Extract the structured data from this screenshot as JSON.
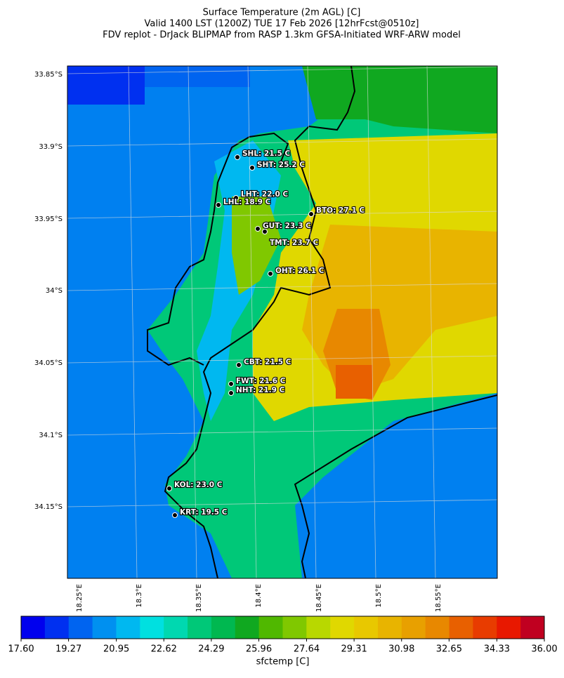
{
  "title": [
    "Surface Temperature (2m AGL) [C]",
    "Valid 1400 LST (1200Z) TUE 17 Feb 2026 [12hrFcst@0510z]",
    "FDV replot - DrJack BLIPMAP from RASP 1.3km GFSA-Initiated WRF-ARW model"
  ],
  "map": {
    "lat_labels": [
      "33.85°S",
      "33.9°S",
      "33.95°S",
      "34°S",
      "34.05°S",
      "34.1°S",
      "34.15°S"
    ],
    "lon_labels": [
      "18.25°E",
      "18.3°E",
      "18.35°E",
      "18.4°E",
      "18.45°E",
      "18.5°E",
      "18.55°E"
    ],
    "stations": [
      "SHL: 21.5 C",
      "SHT: 25.2 C",
      "LHT: 22.0 C",
      "LHL: 18.9 C",
      "BTO: 27.1 C",
      "GUT: 23.3 C",
      "TMT: 23.7 C",
      "OHT: 26.1 C",
      "CBT: 21.5 C",
      "FWT: 21.6 C",
      "NHT: 21.9 C",
      "KOL: 23.0 C",
      "KRT: 19.5 C"
    ]
  },
  "colorbar": {
    "label": "sfctemp [C]",
    "lim": [
      17.6,
      36
    ],
    "colors": [
      "#0000ee",
      "#0030f0",
      "#0064f0",
      "#0090f0",
      "#00b8f0",
      "#00e0e0",
      "#00d8b0",
      "#00c878",
      "#00b850",
      "#10a820",
      "#50b800",
      "#80c800",
      "#b8d800",
      "#e0d800",
      "#e8c800",
      "#e8b400",
      "#e8a000",
      "#e88800",
      "#e86000",
      "#e83c00",
      "#e81800",
      "#c00020"
    ],
    "ticks": [
      {
        "value": 17.6,
        "label": "17.60"
      },
      {
        "value": 19.27,
        "label": "19.27"
      },
      {
        "value": 20.95,
        "label": "20.95"
      },
      {
        "value": 22.62,
        "label": "22.62"
      },
      {
        "value": 24.29,
        "label": "24.29"
      },
      {
        "value": 25.96,
        "label": "25.96"
      },
      {
        "value": 27.64,
        "label": "27.64"
      },
      {
        "value": 29.31,
        "label": "29.31"
      },
      {
        "value": 30.98,
        "label": "30.98"
      },
      {
        "value": 32.65,
        "label": "32.65"
      },
      {
        "value": 34.33,
        "label": "34.33"
      },
      {
        "value": 36,
        "label": "36.00"
      }
    ]
  }
}
